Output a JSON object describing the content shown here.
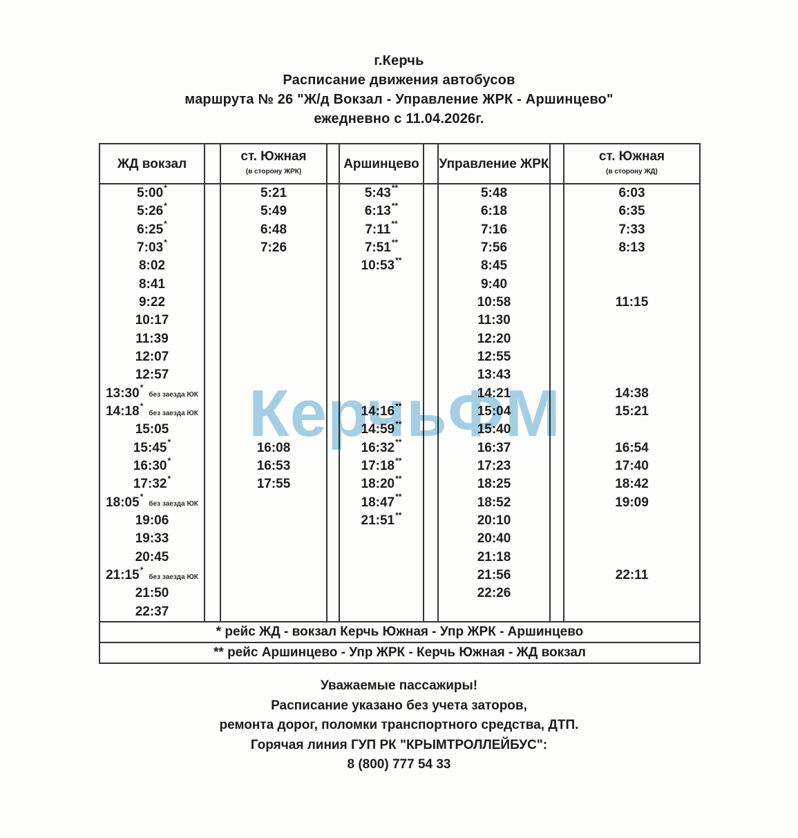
{
  "document": {
    "title_lines": [
      "г.Керчь",
      "Расписание движения автобусов",
      "маршрута № 26 \"Ж/д Вокзал - Управление ЖРК - Аршинцево\"",
      "ежедневно с 11.04.2026г."
    ]
  },
  "watermark": {
    "text": "КерчьФМ",
    "color": "#a6d0e6"
  },
  "table": {
    "headers": [
      {
        "title": "ЖД вокзал",
        "subtitle": ""
      },
      {
        "title": "ст. Южная",
        "subtitle": "(в сторону ЖРК)"
      },
      {
        "title": "Аршинцево",
        "subtitle": ""
      },
      {
        "title": "Управление ЖРК",
        "subtitle": ""
      },
      {
        "title": "ст. Южная",
        "subtitle": "(в сторону ЖД)"
      }
    ],
    "note_text": "без заезда ЮК",
    "rows": [
      [
        "5:00*",
        "5:21",
        "5:43**",
        "5:48",
        "6:03"
      ],
      [
        "5:26*",
        "5:49",
        "6:13**",
        "6:18",
        "6:35"
      ],
      [
        "6:25*",
        "6:48",
        "7:11**",
        "7:16",
        "7:33"
      ],
      [
        "7:03*",
        "7:26",
        "7:51**",
        "7:56",
        "8:13"
      ],
      [
        "8:02",
        "",
        "10:53**",
        "8:45",
        ""
      ],
      [
        "8:41",
        "",
        "",
        "9:40",
        ""
      ],
      [
        "9:22",
        "",
        "",
        "10:58",
        "11:15"
      ],
      [
        "10:17",
        "",
        "",
        "11:30",
        ""
      ],
      [
        "11:39",
        "",
        "",
        "12:20",
        ""
      ],
      [
        "12:07",
        "",
        "",
        "12:55",
        ""
      ],
      [
        "12:57",
        "",
        "",
        "13:43",
        ""
      ],
      [
        {
          "t": "13:30*",
          "note": "без заезда ЮК"
        },
        "",
        "",
        "14:21",
        "14:38"
      ],
      [
        {
          "t": "14:18*",
          "note": "без заезда ЮК"
        },
        "",
        "14:16**",
        "15:04",
        "15:21"
      ],
      [
        "15:05",
        "",
        "14:59**",
        "15:40",
        ""
      ],
      [
        "15:45*",
        "16:08",
        "16:32**",
        "16:37",
        "16:54"
      ],
      [
        "16:30*",
        "16:53",
        "17:18**",
        "17:23",
        "17:40"
      ],
      [
        "17:32*",
        "17:55",
        "18:20**",
        "18:25",
        "18:42"
      ],
      [
        {
          "t": "18:05*",
          "note": "без заезда ЮК"
        },
        "",
        "18:47**",
        "18:52",
        "19:09"
      ],
      [
        "19:06",
        "",
        "21:51**",
        "20:10",
        ""
      ],
      [
        "19:33",
        "",
        "",
        "20:40",
        ""
      ],
      [
        "20:45",
        "",
        "",
        "21:18",
        ""
      ],
      [
        {
          "t": "21:15*",
          "note": "без заезда ЮК"
        },
        "",
        "",
        "21:56",
        "22:11"
      ],
      [
        "21:50",
        "",
        "",
        "22:26",
        ""
      ],
      [
        "22:37",
        "",
        "",
        "",
        ""
      ]
    ],
    "footnotes": [
      "* рейс ЖД - вокзал Керчь Южная - Упр ЖРК - Аршинцево",
      "** рейс Аршинцево - Упр ЖРК - Керчь Южная - ЖД вокзал"
    ]
  },
  "info": {
    "lines": [
      "Уважаемые пассажиры!",
      "Расписание указано без учета заторов,",
      "ремонта дорог, поломки транспортного средства, ДТП.",
      "Горячая линия ГУП РК \"КРЫМТРОЛЛЕЙБУС\":",
      "8 (800) 777 54 33"
    ]
  }
}
